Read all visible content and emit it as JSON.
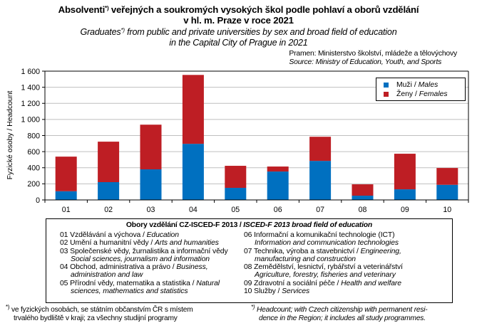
{
  "title": {
    "cz_line1": "Absolventi",
    "cz_mark": "*)",
    "cz_line1_rest": " veřejných a soukromých  vysokých  škol podle pohlaví a oborů vzdělání",
    "cz_line2": "v hl. m. Praze v roce 2021",
    "en_line1": "Graduates",
    "en_mark": "*)",
    "en_line1_rest": " from public and private universities by sex and broad field of education",
    "en_line2": "in the Capital  City of Prague  in 2021"
  },
  "source": {
    "cz": "Pramen:  Ministerstvo školství, mládeže a tělovýchovy",
    "en": "Source: Ministry of Education, Youth, and Sports"
  },
  "chart_data": {
    "type": "bar",
    "stacked": true,
    "title": "Absolventi veřejných a soukromých vysokých škol podle pohlaví a oborů vzdělání v hl. m. Praze v roce 2021",
    "xlabel": "",
    "ylabel": "Fyzické osoby / Headcount",
    "ylim": [
      0,
      1600
    ],
    "yticks": [
      0,
      200,
      400,
      600,
      800,
      1000,
      1200,
      1400,
      1600
    ],
    "ytick_labels": [
      "0",
      "200",
      "400",
      "600",
      "800",
      "1 000",
      "1 200",
      "1 400",
      "1 600"
    ],
    "grid": true,
    "legend_position": "top-right",
    "categories": [
      "01",
      "02",
      "03",
      "04",
      "05",
      "06",
      "07",
      "08",
      "09",
      "10"
    ],
    "series": [
      {
        "name": "Muži / Males",
        "name_cz": "Muži",
        "name_en": "Males",
        "color": "#0070C0",
        "values": [
          108,
          221,
          380,
          697,
          150,
          353,
          485,
          53,
          132,
          188
        ]
      },
      {
        "name": "Ženy / Females",
        "name_cz": "Ženy",
        "name_en": "Females",
        "color": "#BE1E24",
        "values": [
          430,
          503,
          555,
          856,
          274,
          62,
          300,
          141,
          442,
          209
        ]
      }
    ]
  },
  "legend": [
    {
      "cz": "Muži / ",
      "en": "Males",
      "color": "#0070C0"
    },
    {
      "cz": "Ženy / ",
      "en": "Females",
      "color": "#BE1E24"
    }
  ],
  "fields": {
    "title_cz": "Obory vzdělání CZ-ISCED-F 2013 / ",
    "title_en": "ISCED-F 2013 broad field of education",
    "left": [
      {
        "cz": "01 Vzdělávání a výchova / ",
        "en": "Education",
        "cont": ""
      },
      {
        "cz": "02 Umění  a humanitní  vědy / ",
        "en": "Arts and humanities",
        "cont": ""
      },
      {
        "cz": "03 Společenské vědy, žurnalistika a informační vědy",
        "en": "",
        "cont": "Social sciences, journalism and information"
      },
      {
        "cz": "04 Obchod, administrativa a právo / ",
        "en": "Business,",
        "cont": "administration and law"
      },
      {
        "cz": "05 Přírodní  vědy, matematika a statistika / ",
        "en": "Natural",
        "cont": "sciences, mathematics and statistics"
      }
    ],
    "right": [
      {
        "cz": "06 Informační a komunikační  technologie (ICT)",
        "en": "",
        "cont": "Information and communication technologies"
      },
      {
        "cz": "07 Technika,  výroba a stavebnictví / ",
        "en": "Engineering,",
        "cont": "manufacturing and construction"
      },
      {
        "cz": "08 Zemědělství, lesnictví, rybářství a veterinářství",
        "en": "",
        "cont": "Agriculture, forestry, fisheries and veterinary"
      },
      {
        "cz": "09 Zdravotní a sociální péče / ",
        "en": "Health and welfare",
        "cont": ""
      },
      {
        "cz": "10 Služby / ",
        "en": "Services",
        "cont": ""
      }
    ]
  },
  "notes": {
    "cz_mark": "*)",
    "cz_line1": " ve fyzických osobách, se státním občanstvím ČR  s místem",
    "cz_line2": "trvalého bydliště v kraji;  za všechny studijní programy",
    "en_mark": "*)",
    "en_line1": " Headcount; with Czech citizenship with permanent resi-",
    "en_line2": "dence in the Region; it includes all study programmes."
  }
}
